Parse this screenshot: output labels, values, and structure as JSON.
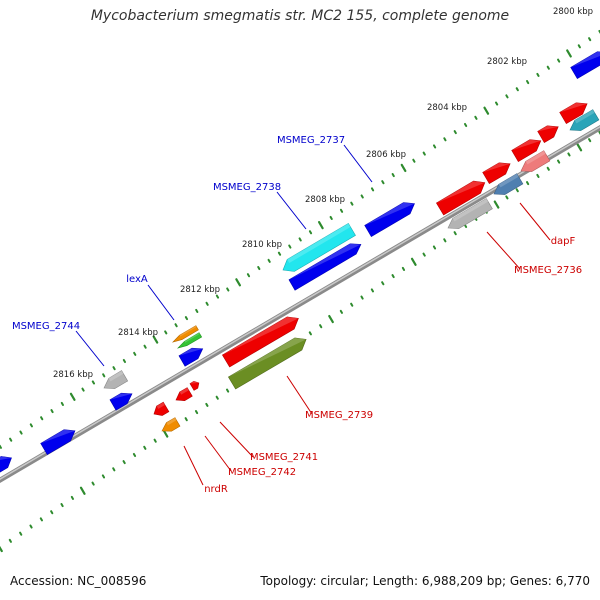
{
  "title": "Mycobacterium smegmatis str. MC2 155, complete genome",
  "footer": {
    "accession": "Accession: NC_008596",
    "summary": "Topology: circular; Length: 6,988,209 bp; Genes: 6,770"
  },
  "ticks": [
    "2800 kbp",
    "2802 kbp",
    "2804 kbp",
    "2806 kbp",
    "2808 kbp",
    "2810 kbp",
    "2812 kbp",
    "2814 kbp",
    "2816 kbp"
  ],
  "gene_labels": {
    "top": [
      "MSMEG_2737",
      "MSMEG_2738",
      "lexA",
      "MSMEG_2744"
    ],
    "bottom": [
      "dapF",
      "MSMEG_2736",
      "MSMEG_2739",
      "MSMEG_2741",
      "MSMEG_2742",
      "nrdR"
    ]
  },
  "colors": {
    "blue": "#0000ee",
    "cyan": "#22e6ee",
    "red": "#ee0000",
    "pink": "#ee7b7b",
    "gray": "#b3b3b3",
    "orange": "#f08c00",
    "green": "#33c433",
    "olive": "#6b8e23",
    "steel": "#4f7fb0",
    "teal": "#2aa4b8",
    "label_blue": "#0000cc",
    "label_red": "#cc0000",
    "tick_green": "#2e8b2e",
    "backbone": "#8a8a8a"
  }
}
